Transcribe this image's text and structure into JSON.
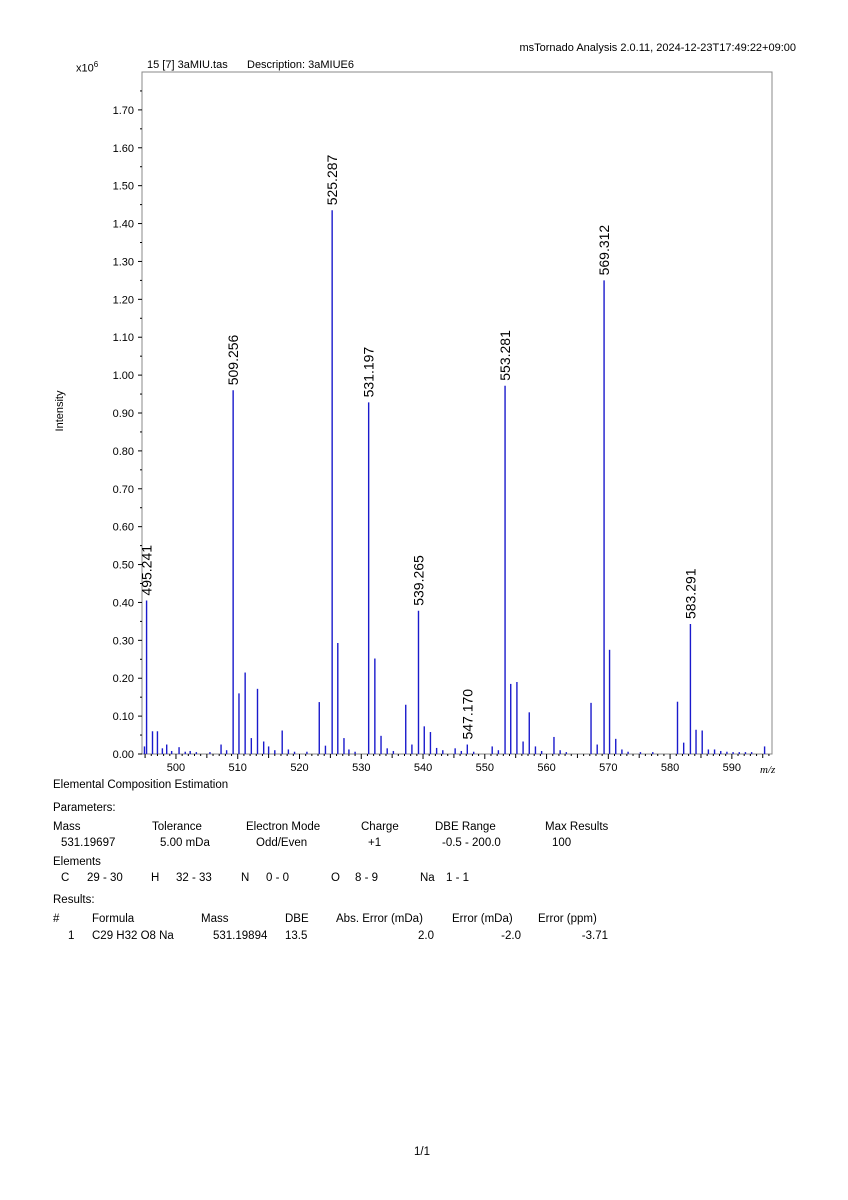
{
  "header": {
    "software_line": "msTornado Analysis 2.0.11, 2024-12-23T17:49:22+09:00",
    "scale_prefix": "x10",
    "scale_exp": "6",
    "spectrum_id": "15 [7] 3aMIU.tas",
    "description": "Description: 3aMIUE6"
  },
  "chart_data": {
    "type": "bar",
    "xlabel": "m/z",
    "ylabel": "Intensity",
    "xlim": [
      494.5,
      596.5
    ],
    "ylim": [
      0,
      1.8
    ],
    "yticks": [
      "0.00",
      "0.10",
      "0.20",
      "0.30",
      "0.40",
      "0.50",
      "0.60",
      "0.70",
      "0.80",
      "0.90",
      "1.00",
      "1.10",
      "1.20",
      "1.30",
      "1.40",
      "1.50",
      "1.60",
      "1.70"
    ],
    "xticks": [
      "500",
      "510",
      "520",
      "530",
      "540",
      "550",
      "560",
      "570",
      "580",
      "590"
    ],
    "series_color": "#1a1acc",
    "peaks": [
      {
        "x": 494.9,
        "y": 0.02
      },
      {
        "x": 495.241,
        "y": 0.405,
        "label": "495.241"
      },
      {
        "x": 496.2,
        "y": 0.06
      },
      {
        "x": 497.0,
        "y": 0.06
      },
      {
        "x": 497.8,
        "y": 0.015
      },
      {
        "x": 498.5,
        "y": 0.025
      },
      {
        "x": 499.3,
        "y": 0.008
      },
      {
        "x": 500.5,
        "y": 0.018
      },
      {
        "x": 501.5,
        "y": 0.006
      },
      {
        "x": 502.3,
        "y": 0.008
      },
      {
        "x": 503.3,
        "y": 0.005
      },
      {
        "x": 505.5,
        "y": 0.005
      },
      {
        "x": 507.3,
        "y": 0.025
      },
      {
        "x": 508.2,
        "y": 0.01
      },
      {
        "x": 509.256,
        "y": 0.96,
        "label": "509.256"
      },
      {
        "x": 510.2,
        "y": 0.16
      },
      {
        "x": 511.2,
        "y": 0.215
      },
      {
        "x": 512.2,
        "y": 0.042
      },
      {
        "x": 513.2,
        "y": 0.172
      },
      {
        "x": 514.2,
        "y": 0.033
      },
      {
        "x": 515.0,
        "y": 0.02
      },
      {
        "x": 516.0,
        "y": 0.01
      },
      {
        "x": 517.2,
        "y": 0.062
      },
      {
        "x": 518.2,
        "y": 0.012
      },
      {
        "x": 519.2,
        "y": 0.006
      },
      {
        "x": 521.2,
        "y": 0.006
      },
      {
        "x": 523.2,
        "y": 0.137
      },
      {
        "x": 524.2,
        "y": 0.022
      },
      {
        "x": 525.287,
        "y": 1.435,
        "label": "525.287"
      },
      {
        "x": 526.2,
        "y": 0.293
      },
      {
        "x": 527.2,
        "y": 0.042
      },
      {
        "x": 528.0,
        "y": 0.012
      },
      {
        "x": 529.0,
        "y": 0.006
      },
      {
        "x": 531.197,
        "y": 0.928,
        "label": "531.197"
      },
      {
        "x": 532.2,
        "y": 0.252
      },
      {
        "x": 533.2,
        "y": 0.048
      },
      {
        "x": 534.2,
        "y": 0.015
      },
      {
        "x": 535.2,
        "y": 0.008
      },
      {
        "x": 537.2,
        "y": 0.13
      },
      {
        "x": 538.2,
        "y": 0.025
      },
      {
        "x": 539.265,
        "y": 0.378,
        "label": "539.265"
      },
      {
        "x": 540.2,
        "y": 0.073
      },
      {
        "x": 541.2,
        "y": 0.058
      },
      {
        "x": 542.2,
        "y": 0.016
      },
      {
        "x": 543.2,
        "y": 0.01
      },
      {
        "x": 545.2,
        "y": 0.015
      },
      {
        "x": 546.2,
        "y": 0.008
      },
      {
        "x": 547.17,
        "y": 0.025,
        "label": "547.170"
      },
      {
        "x": 548.2,
        "y": 0.006
      },
      {
        "x": 551.2,
        "y": 0.02
      },
      {
        "x": 552.2,
        "y": 0.01
      },
      {
        "x": 553.281,
        "y": 0.972,
        "label": "553.281"
      },
      {
        "x": 554.2,
        "y": 0.185
      },
      {
        "x": 555.2,
        "y": 0.19
      },
      {
        "x": 556.2,
        "y": 0.033
      },
      {
        "x": 557.2,
        "y": 0.11
      },
      {
        "x": 558.2,
        "y": 0.02
      },
      {
        "x": 559.2,
        "y": 0.008
      },
      {
        "x": 561.2,
        "y": 0.045
      },
      {
        "x": 562.2,
        "y": 0.01
      },
      {
        "x": 563.2,
        "y": 0.005
      },
      {
        "x": 567.2,
        "y": 0.135
      },
      {
        "x": 568.2,
        "y": 0.025
      },
      {
        "x": 569.312,
        "y": 1.25,
        "label": "569.312"
      },
      {
        "x": 570.2,
        "y": 0.275
      },
      {
        "x": 571.2,
        "y": 0.04
      },
      {
        "x": 572.2,
        "y": 0.012
      },
      {
        "x": 573.2,
        "y": 0.006
      },
      {
        "x": 575.2,
        "y": 0.005
      },
      {
        "x": 577.2,
        "y": 0.005
      },
      {
        "x": 581.2,
        "y": 0.138
      },
      {
        "x": 582.2,
        "y": 0.03
      },
      {
        "x": 583.291,
        "y": 0.343,
        "label": "583.291"
      },
      {
        "x": 584.2,
        "y": 0.064
      },
      {
        "x": 585.2,
        "y": 0.062
      },
      {
        "x": 586.2,
        "y": 0.012
      },
      {
        "x": 587.2,
        "y": 0.012
      },
      {
        "x": 588.2,
        "y": 0.008
      },
      {
        "x": 589.2,
        "y": 0.006
      },
      {
        "x": 590.2,
        "y": 0.005
      },
      {
        "x": 591.2,
        "y": 0.005
      },
      {
        "x": 592.2,
        "y": 0.005
      },
      {
        "x": 593.2,
        "y": 0.005
      },
      {
        "x": 595.3,
        "y": 0.02
      }
    ]
  },
  "ece": {
    "title": "Elemental Composition Estimation",
    "parameters_label": "Parameters:",
    "param_headers": {
      "mass": "Mass",
      "tolerance": "Tolerance",
      "electron_mode": "Electron Mode",
      "charge": "Charge",
      "dbe_range": "DBE Range",
      "max_results": "Max Results"
    },
    "param_values": {
      "mass": "531.19697",
      "tolerance": "5.00 mDa",
      "electron_mode": "Odd/Even",
      "charge": "+1",
      "dbe_range": "-0.5 - 200.0",
      "max_results": "100"
    },
    "elements_label": "Elements",
    "elements": [
      {
        "symbol": "C",
        "range": "29 - 30"
      },
      {
        "symbol": "H",
        "range": "32 - 33"
      },
      {
        "symbol": "N",
        "range": "0 - 0"
      },
      {
        "symbol": "O",
        "range": "8 - 9"
      },
      {
        "symbol": "Na",
        "range": "1 - 1"
      }
    ],
    "results_label": "Results:",
    "result_headers": {
      "num": "#",
      "formula": "Formula",
      "mass": "Mass",
      "dbe": "DBE",
      "abs_error": "Abs. Error (mDa)",
      "error_mda": "Error (mDa)",
      "error_ppm": "Error (ppm)"
    },
    "results": [
      {
        "num": "1",
        "formula": "C29 H32 O8 Na",
        "mass": "531.19894",
        "dbe": "13.5",
        "abs_error": "2.0",
        "error_mda": "-2.0",
        "error_ppm": "-3.71"
      }
    ]
  },
  "footer": {
    "page": "1/1"
  }
}
